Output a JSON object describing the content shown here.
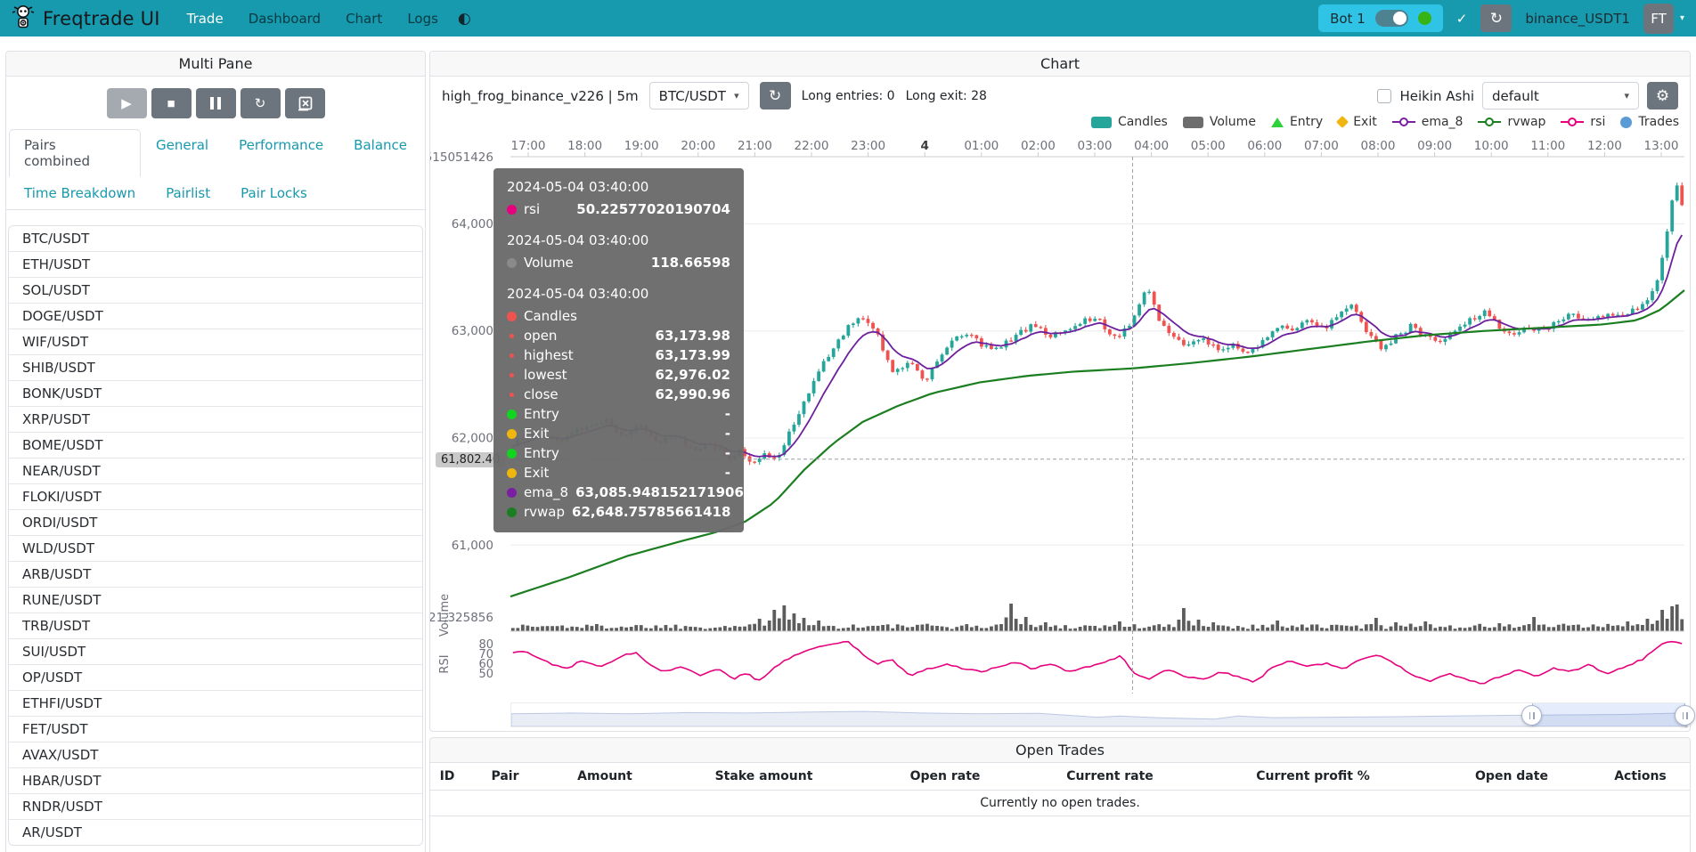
{
  "navbar": {
    "brand": "Freqtrade UI",
    "items": [
      {
        "label": "Trade",
        "active": true
      },
      {
        "label": "Dashboard",
        "active": false
      },
      {
        "label": "Chart",
        "active": false
      },
      {
        "label": "Logs",
        "active": false
      }
    ],
    "bot": {
      "name": "Bot 1",
      "online": true
    },
    "check_glyph": "✓",
    "reload_glyph": "↻",
    "exchange_label": "binance_USDT1",
    "avatar_initials": "FT",
    "caret_glyph": "▾",
    "theme_glyph": "◐"
  },
  "multi_pane": {
    "title": "Multi Pane",
    "controls": [
      {
        "name": "play",
        "glyph": "▶",
        "disabled": true
      },
      {
        "name": "stop",
        "glyph": "■",
        "disabled": false
      },
      {
        "name": "pause",
        "glyph": "pause-bars",
        "disabled": false
      },
      {
        "name": "reload",
        "glyph": "↻",
        "disabled": false
      },
      {
        "name": "forget-chart",
        "glyph": "box-x",
        "disabled": false
      }
    ],
    "tab_rows": [
      [
        {
          "label": "Pairs combined",
          "active": true
        },
        {
          "label": "General",
          "active": false
        },
        {
          "label": "Performance",
          "active": false
        },
        {
          "label": "Balance",
          "active": false
        }
      ],
      [
        {
          "label": "Time Breakdown",
          "active": false
        },
        {
          "label": "Pairlist",
          "active": false
        },
        {
          "label": "Pair Locks",
          "active": false
        }
      ]
    ],
    "pairs": [
      "BTC/USDT",
      "ETH/USDT",
      "SOL/USDT",
      "DOGE/USDT",
      "WIF/USDT",
      "SHIB/USDT",
      "BONK/USDT",
      "XRP/USDT",
      "BOME/USDT",
      "NEAR/USDT",
      "FLOKI/USDT",
      "ORDI/USDT",
      "WLD/USDT",
      "ARB/USDT",
      "RUNE/USDT",
      "TRB/USDT",
      "SUI/USDT",
      "OP/USDT",
      "ETHFI/USDT",
      "FET/USDT",
      "AVAX/USDT",
      "HBAR/USDT",
      "RNDR/USDT",
      "AR/USDT"
    ]
  },
  "chart_panel": {
    "title": "Chart",
    "strategy_label": "high_frog_binance_v226 | 5m",
    "pair_select_value": "BTC/USDT",
    "entries_label": "Long entries: 0",
    "exits_label": "Long exit: 28",
    "heikin_ashi_label": "Heikin Ashi",
    "plot_config_value": "default",
    "legend": [
      {
        "label": "Candles",
        "marker": "rect",
        "color": "#26a69a"
      },
      {
        "label": "Volume",
        "marker": "rect",
        "color": "#6d6d6d"
      },
      {
        "label": "Entry",
        "marker": "triangle",
        "color": "#2fd13c"
      },
      {
        "label": "Exit",
        "marker": "diamond",
        "color": "#eeb60f"
      },
      {
        "label": "ema_8",
        "marker": "line-ring",
        "color": "#7b1fa2"
      },
      {
        "label": "rvwap",
        "marker": "line-ring",
        "color": "#1b7e20"
      },
      {
        "label": "rsi",
        "marker": "line-ring",
        "color": "#e6007e"
      },
      {
        "label": "Trades",
        "marker": "circle",
        "color": "#5b9bd5"
      }
    ]
  },
  "tooltip": {
    "sections": [
      {
        "time": "2024-05-04 03:40:00",
        "rows": [
          {
            "dot": "#e6007e",
            "label": "rsi",
            "value": "50.22577020190704"
          }
        ]
      },
      {
        "time": "2024-05-04 03:40:00",
        "rows": [
          {
            "dot": "#8a8a8a",
            "label": "Volume",
            "value": "118.66598"
          }
        ]
      },
      {
        "time": "2024-05-04 03:40:00",
        "rows": [
          {
            "dot": "#ef5350",
            "label": "Candles",
            "value": ""
          },
          {
            "dot": "#ef5350",
            "small": true,
            "label": "open",
            "value": "63,173.98"
          },
          {
            "dot": "#ef5350",
            "small": true,
            "label": "highest",
            "value": "63,173.99"
          },
          {
            "dot": "#ef5350",
            "small": true,
            "label": "lowest",
            "value": "62,976.02"
          },
          {
            "dot": "#ef5350",
            "small": true,
            "label": "close",
            "value": "62,990.96"
          },
          {
            "dot": "#10d41e",
            "label": "Entry",
            "value": "-"
          },
          {
            "dot": "#eeb60f",
            "label": "Exit",
            "value": "-"
          },
          {
            "dot": "#10d41e",
            "label": "Entry",
            "value": "-"
          },
          {
            "dot": "#eeb60f",
            "label": "Exit",
            "value": "-"
          },
          {
            "dot": "#7b1fa2",
            "label": "ema_8",
            "value": "63,085.948152171906"
          },
          {
            "dot": "#1b7e20",
            "label": "rvwap",
            "value": "62,648.75785661418"
          }
        ]
      }
    ]
  },
  "chart_data": {
    "type": "candlestick",
    "time_ticks": [
      {
        "label": "17:00"
      },
      {
        "label": "18:00"
      },
      {
        "label": "19:00"
      },
      {
        "label": "20:00"
      },
      {
        "label": "21:00"
      },
      {
        "label": "22:00"
      },
      {
        "label": "23:00"
      },
      {
        "label": "4",
        "bold": true
      },
      {
        "label": "01:00"
      },
      {
        "label": "02:00"
      },
      {
        "label": "03:00"
      },
      {
        "label": "04:00"
      },
      {
        "label": "05:00"
      },
      {
        "label": "06:00"
      },
      {
        "label": "07:00"
      },
      {
        "label": "08:00"
      },
      {
        "label": "09:00"
      },
      {
        "label": "10:00"
      },
      {
        "label": "11:00"
      },
      {
        "label": "12:00"
      },
      {
        "label": "13:00"
      }
    ],
    "y_axis_top_label": "515051426",
    "price_ticks": [
      {
        "label": "64,000",
        "value": 64000
      },
      {
        "label": "63,000",
        "value": 63000
      },
      {
        "label": "62,000",
        "value": 62000
      },
      {
        "label": "61,000",
        "value": 61000
      }
    ],
    "crosshair": {
      "time_frac": 0.53,
      "price_label": "61,802.40",
      "price": 61802.4
    },
    "volume_pane": {
      "label": "Volume",
      "axis_label": "21,325856"
    },
    "rsi_pane": {
      "label": "RSI",
      "ticks": [
        "80",
        "70",
        "60",
        "50"
      ]
    },
    "colors": {
      "up": "#26a69a",
      "down": "#ef5350",
      "ema": "#6d1f9e",
      "rvwap": "#1b7e20",
      "rsi": "#e6007e",
      "volume": "#5c5c5c"
    },
    "close_anchors": [
      [
        0,
        61950
      ],
      [
        0.02,
        62060
      ],
      [
        0.04,
        61980
      ],
      [
        0.06,
        62100
      ],
      [
        0.08,
        62150
      ],
      [
        0.095,
        62020
      ],
      [
        0.11,
        62120
      ],
      [
        0.125,
        61950
      ],
      [
        0.14,
        62020
      ],
      [
        0.155,
        61880
      ],
      [
        0.17,
        61950
      ],
      [
        0.185,
        61800
      ],
      [
        0.195,
        61900
      ],
      [
        0.205,
        61770
      ],
      [
        0.215,
        61850
      ],
      [
        0.225,
        61800
      ],
      [
        0.235,
        62020
      ],
      [
        0.25,
        62340
      ],
      [
        0.265,
        62680
      ],
      [
        0.278,
        62920
      ],
      [
        0.29,
        63080
      ],
      [
        0.3,
        63140
      ],
      [
        0.312,
        62950
      ],
      [
        0.325,
        62620
      ],
      [
        0.34,
        62700
      ],
      [
        0.352,
        62520
      ],
      [
        0.365,
        62740
      ],
      [
        0.378,
        62930
      ],
      [
        0.39,
        62980
      ],
      [
        0.402,
        62850
      ],
      [
        0.415,
        62820
      ],
      [
        0.43,
        62960
      ],
      [
        0.445,
        63060
      ],
      [
        0.458,
        62950
      ],
      [
        0.47,
        63000
      ],
      [
        0.485,
        63080
      ],
      [
        0.5,
        63120
      ],
      [
        0.512,
        62920
      ],
      [
        0.525,
        63010
      ],
      [
        0.543,
        63420
      ],
      [
        0.552,
        63120
      ],
      [
        0.565,
        62960
      ],
      [
        0.578,
        62860
      ],
      [
        0.59,
        62920
      ],
      [
        0.603,
        62820
      ],
      [
        0.615,
        62870
      ],
      [
        0.628,
        62780
      ],
      [
        0.64,
        62900
      ],
      [
        0.655,
        63040
      ],
      [
        0.668,
        63000
      ],
      [
        0.68,
        63090
      ],
      [
        0.693,
        63010
      ],
      [
        0.705,
        63130
      ],
      [
        0.718,
        63230
      ],
      [
        0.73,
        63000
      ],
      [
        0.742,
        62830
      ],
      [
        0.755,
        62940
      ],
      [
        0.768,
        63040
      ],
      [
        0.78,
        62960
      ],
      [
        0.793,
        62900
      ],
      [
        0.805,
        63000
      ],
      [
        0.818,
        63090
      ],
      [
        0.83,
        63180
      ],
      [
        0.842,
        63060
      ],
      [
        0.855,
        62960
      ],
      [
        0.868,
        63040
      ],
      [
        0.88,
        63000
      ],
      [
        0.893,
        63080
      ],
      [
        0.905,
        63150
      ],
      [
        0.918,
        63100
      ],
      [
        0.93,
        63160
      ],
      [
        0.942,
        63120
      ],
      [
        0.955,
        63180
      ],
      [
        0.968,
        63260
      ],
      [
        0.978,
        63420
      ],
      [
        0.988,
        63980
      ],
      [
        0.995,
        64420
      ],
      [
        1,
        64150
      ]
    ],
    "rvwap_anchors": [
      [
        0,
        60520
      ],
      [
        0.05,
        60700
      ],
      [
        0.1,
        60900
      ],
      [
        0.15,
        61050
      ],
      [
        0.175,
        61120
      ],
      [
        0.2,
        61220
      ],
      [
        0.225,
        61400
      ],
      [
        0.25,
        61700
      ],
      [
        0.275,
        61950
      ],
      [
        0.3,
        62150
      ],
      [
        0.33,
        62300
      ],
      [
        0.36,
        62420
      ],
      [
        0.4,
        62520
      ],
      [
        0.44,
        62580
      ],
      [
        0.48,
        62620
      ],
      [
        0.53,
        62650
      ],
      [
        0.58,
        62700
      ],
      [
        0.63,
        62760
      ],
      [
        0.68,
        62830
      ],
      [
        0.73,
        62900
      ],
      [
        0.78,
        62960
      ],
      [
        0.83,
        63000
      ],
      [
        0.88,
        63030
      ],
      [
        0.93,
        63060
      ],
      [
        0.96,
        63100
      ],
      [
        0.98,
        63200
      ],
      [
        1,
        63380
      ]
    ],
    "rsi_anchors": [
      [
        0,
        72
      ],
      [
        0.01,
        74
      ],
      [
        0.03,
        62
      ],
      [
        0.045,
        55
      ],
      [
        0.06,
        64
      ],
      [
        0.075,
        58
      ],
      [
        0.09,
        66
      ],
      [
        0.105,
        73
      ],
      [
        0.115,
        62
      ],
      [
        0.13,
        52
      ],
      [
        0.145,
        58
      ],
      [
        0.16,
        49
      ],
      [
        0.175,
        55
      ],
      [
        0.19,
        45
      ],
      [
        0.2,
        52
      ],
      [
        0.21,
        42
      ],
      [
        0.225,
        58
      ],
      [
        0.24,
        68
      ],
      [
        0.255,
        76
      ],
      [
        0.27,
        80
      ],
      [
        0.285,
        84
      ],
      [
        0.3,
        70
      ],
      [
        0.31,
        60
      ],
      [
        0.325,
        64
      ],
      [
        0.34,
        48
      ],
      [
        0.355,
        55
      ],
      [
        0.37,
        60
      ],
      [
        0.385,
        56
      ],
      [
        0.4,
        52
      ],
      [
        0.415,
        58
      ],
      [
        0.43,
        62
      ],
      [
        0.445,
        55
      ],
      [
        0.46,
        60
      ],
      [
        0.475,
        52
      ],
      [
        0.49,
        57
      ],
      [
        0.505,
        62
      ],
      [
        0.52,
        68
      ],
      [
        0.532,
        50.2
      ],
      [
        0.545,
        45
      ],
      [
        0.56,
        55
      ],
      [
        0.575,
        48
      ],
      [
        0.59,
        44
      ],
      [
        0.605,
        52
      ],
      [
        0.62,
        47
      ],
      [
        0.635,
        42
      ],
      [
        0.65,
        57
      ],
      [
        0.665,
        64
      ],
      [
        0.68,
        58
      ],
      [
        0.695,
        61
      ],
      [
        0.71,
        55
      ],
      [
        0.725,
        65
      ],
      [
        0.74,
        70
      ],
      [
        0.755,
        60
      ],
      [
        0.77,
        48
      ],
      [
        0.785,
        42
      ],
      [
        0.8,
        50
      ],
      [
        0.815,
        44
      ],
      [
        0.83,
        40
      ],
      [
        0.845,
        48
      ],
      [
        0.86,
        54
      ],
      [
        0.875,
        48
      ],
      [
        0.89,
        56
      ],
      [
        0.905,
        52
      ],
      [
        0.92,
        60
      ],
      [
        0.935,
        50
      ],
      [
        0.95,
        57
      ],
      [
        0.965,
        64
      ],
      [
        0.98,
        78
      ],
      [
        0.99,
        84
      ],
      [
        1,
        80
      ]
    ],
    "volume_spikes": [
      [
        0.21,
        14
      ],
      [
        0.225,
        24
      ],
      [
        0.232,
        29
      ],
      [
        0.24,
        20
      ],
      [
        0.25,
        15
      ],
      [
        0.262,
        12
      ],
      [
        0.428,
        31
      ],
      [
        0.44,
        16
      ],
      [
        0.455,
        10
      ],
      [
        0.52,
        11
      ],
      [
        0.572,
        26
      ],
      [
        0.585,
        13
      ],
      [
        0.6,
        10
      ],
      [
        0.655,
        12
      ],
      [
        0.74,
        15
      ],
      [
        0.755,
        10
      ],
      [
        0.78,
        11
      ],
      [
        0.845,
        9
      ],
      [
        0.875,
        16
      ],
      [
        0.955,
        11
      ],
      [
        0.972,
        14
      ],
      [
        0.982,
        24
      ],
      [
        0.99,
        28
      ],
      [
        0.997,
        30
      ]
    ],
    "datazoom_anchors": [
      [
        0,
        0.45
      ],
      [
        0.05,
        0.42
      ],
      [
        0.1,
        0.45
      ],
      [
        0.15,
        0.4
      ],
      [
        0.2,
        0.42
      ],
      [
        0.25,
        0.38
      ],
      [
        0.3,
        0.35
      ],
      [
        0.35,
        0.42
      ],
      [
        0.4,
        0.45
      ],
      [
        0.45,
        0.43
      ],
      [
        0.5,
        0.6
      ],
      [
        0.52,
        0.55
      ],
      [
        0.55,
        0.62
      ],
      [
        0.6,
        0.68
      ],
      [
        0.62,
        0.55
      ],
      [
        0.65,
        0.62
      ],
      [
        0.7,
        0.6
      ],
      [
        0.75,
        0.58
      ],
      [
        0.8,
        0.55
      ],
      [
        0.85,
        0.52
      ],
      [
        0.9,
        0.5
      ],
      [
        0.95,
        0.48
      ],
      [
        1,
        0.42
      ]
    ]
  },
  "open_trades": {
    "title": "Open Trades",
    "columns": [
      "ID",
      "Pair",
      "Amount",
      "Stake amount",
      "Open rate",
      "Current rate",
      "Current profit %",
      "Open date",
      "Actions"
    ],
    "empty_message": "Currently no open trades."
  }
}
